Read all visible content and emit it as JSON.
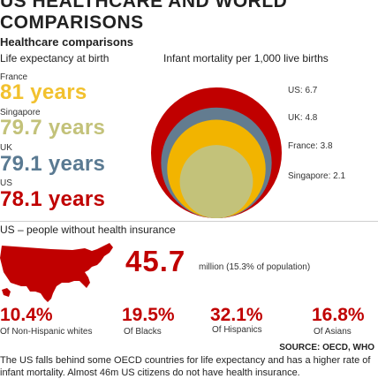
{
  "title_line1": "US HEALTHCARE AND WORLD",
  "title_line2": "COMPARISONS",
  "subtitle": "Healthcare comparisons",
  "chart_data": [
    {
      "type": "table",
      "title": "Life expectancy at birth",
      "rows": [
        {
          "country": "France",
          "value": 81,
          "display": "81 years",
          "color": "#f2c12e"
        },
        {
          "country": "Singapore",
          "value": 79.7,
          "display": "79.7 years",
          "color": "#c3c27a"
        },
        {
          "country": "UK",
          "value": 79.1,
          "display": "79.1 years",
          "color": "#5a7a92"
        },
        {
          "country": "US",
          "value": 78.1,
          "display": "78.1 years",
          "color": "#c00000"
        }
      ]
    },
    {
      "type": "bubble",
      "title": "Infant mortality per 1,000 live births",
      "points": [
        {
          "label": "US: 6.7",
          "country": "US",
          "value": 6.7,
          "color": "#c00000"
        },
        {
          "label": "UK: 4.8",
          "country": "UK",
          "value": 4.8,
          "color": "#637c90"
        },
        {
          "label": "France: 3.8",
          "country": "France",
          "value": 3.8,
          "color": "#f2b400"
        },
        {
          "label": "Singapore: 2.1",
          "country": "Singapore",
          "value": 2.1,
          "color": "#c3c27a"
        }
      ]
    },
    {
      "type": "table",
      "title": "US – people without health insurance",
      "total": {
        "value": 45.7,
        "display": "45.7",
        "unit": "million (15.3% of population)"
      },
      "breakdown": [
        {
          "value": 10.4,
          "display": "10.4%",
          "label": "Of Non-Hispanic whites"
        },
        {
          "value": 19.5,
          "display": "19.5%",
          "label": "Of Blacks"
        },
        {
          "value": 32.1,
          "display": "32.1%",
          "label": "Of Hispanics"
        },
        {
          "value": 16.8,
          "display": "16.8%",
          "label": "Of Asians"
        }
      ]
    }
  ],
  "map_icon": "us-map-icon",
  "accent_red": "#c00000",
  "source": "SOURCE: OECD, WHO",
  "footnote": "The US falls behind some OECD countries for life expectancy and has a higher rate of infant mortality. Almost 46m US citizens do not have health insurance."
}
